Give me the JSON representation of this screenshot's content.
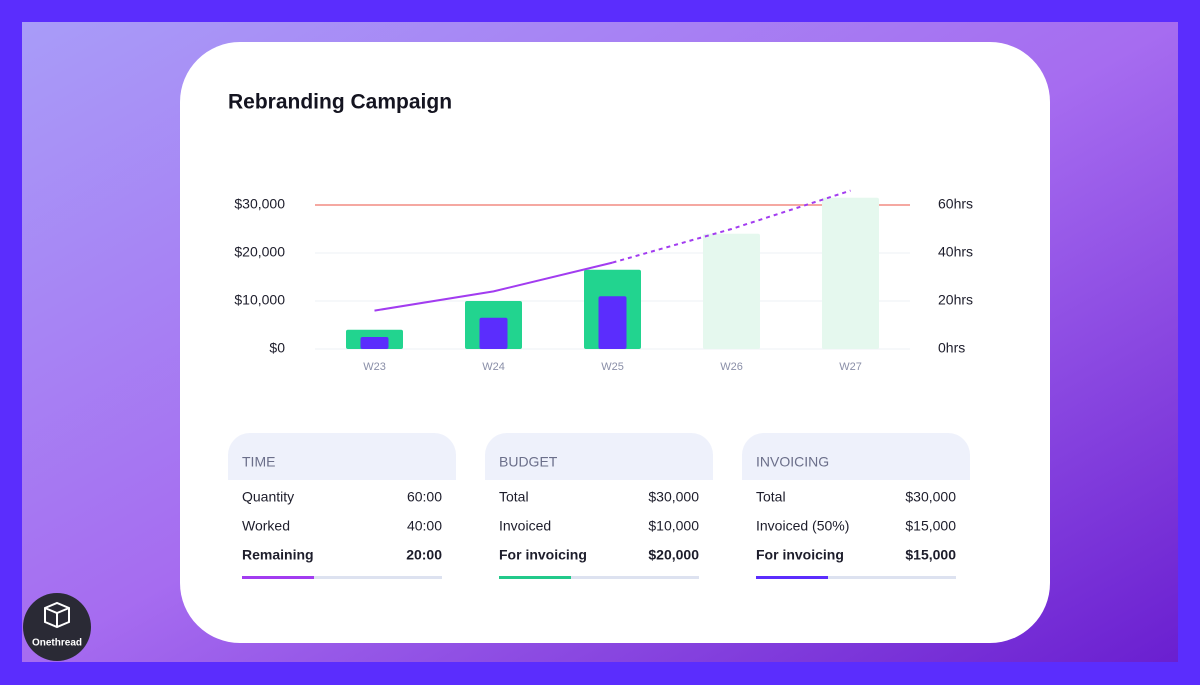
{
  "chart_data": {
    "type": "bar",
    "title": "Rebranding Campaign",
    "categories": [
      "W23",
      "W24",
      "W25",
      "W26",
      "W27"
    ],
    "series": [
      {
        "colors": [
          "#22d48f",
          "#22d48f",
          "#22d48f",
          "#e5f8ee",
          "#e5f8ee"
        ],
        "values": [
          4000,
          10000,
          16500,
          24000,
          31500
        ]
      },
      {
        "color": "#5b2dfd",
        "values": [
          2500,
          6500,
          11000,
          null,
          null
        ]
      },
      {
        "type": "line",
        "axis": "y2",
        "color": "#a23cf0",
        "values": [
          16,
          24,
          36,
          null,
          null
        ]
      },
      {
        "type": "line",
        "axis": "y2",
        "color": "#a23cf0",
        "dashed": true,
        "values": [
          null,
          null,
          36,
          50,
          66
        ]
      }
    ],
    "budget_line": {
      "value": 30000,
      "color": "#f28b82"
    },
    "ylim": [
      0,
      30000
    ],
    "yticks": [
      {
        "value": 0,
        "label": "$0"
      },
      {
        "value": 10000,
        "label": "$10,000"
      },
      {
        "value": 20000,
        "label": "$20,000"
      },
      {
        "value": 30000,
        "label": "$30,000"
      }
    ],
    "y2lim": [
      0,
      60
    ],
    "y2ticks": [
      {
        "value": 0,
        "label": "0hrs"
      },
      {
        "value": 20,
        "label": "20hrs"
      },
      {
        "value": 40,
        "label": "40hrs"
      },
      {
        "value": 60,
        "label": "60hrs"
      }
    ],
    "grid": true
  },
  "panels": [
    {
      "title": "TIME",
      "rows": [
        [
          "Quantity",
          "60:00"
        ],
        [
          "Worked",
          "40:00"
        ],
        [
          "Remaining",
          "20:00"
        ]
      ],
      "progress": 36,
      "color": "#a23cf0"
    },
    {
      "title": "BUDGET",
      "rows": [
        [
          "Total",
          "$30,000"
        ],
        [
          "Invoiced",
          "$10,000"
        ],
        [
          "For invoicing",
          "$20,000"
        ]
      ],
      "progress": 36,
      "color": "#22c98a"
    },
    {
      "title": "INVOICING",
      "rows": [
        [
          "Total",
          "$30,000"
        ],
        [
          "Invoiced (50%)",
          "$15,000"
        ],
        [
          "For invoicing",
          "$15,000"
        ]
      ],
      "progress": 36,
      "color": "#5b2dfd"
    }
  ],
  "logo": "Onethread"
}
